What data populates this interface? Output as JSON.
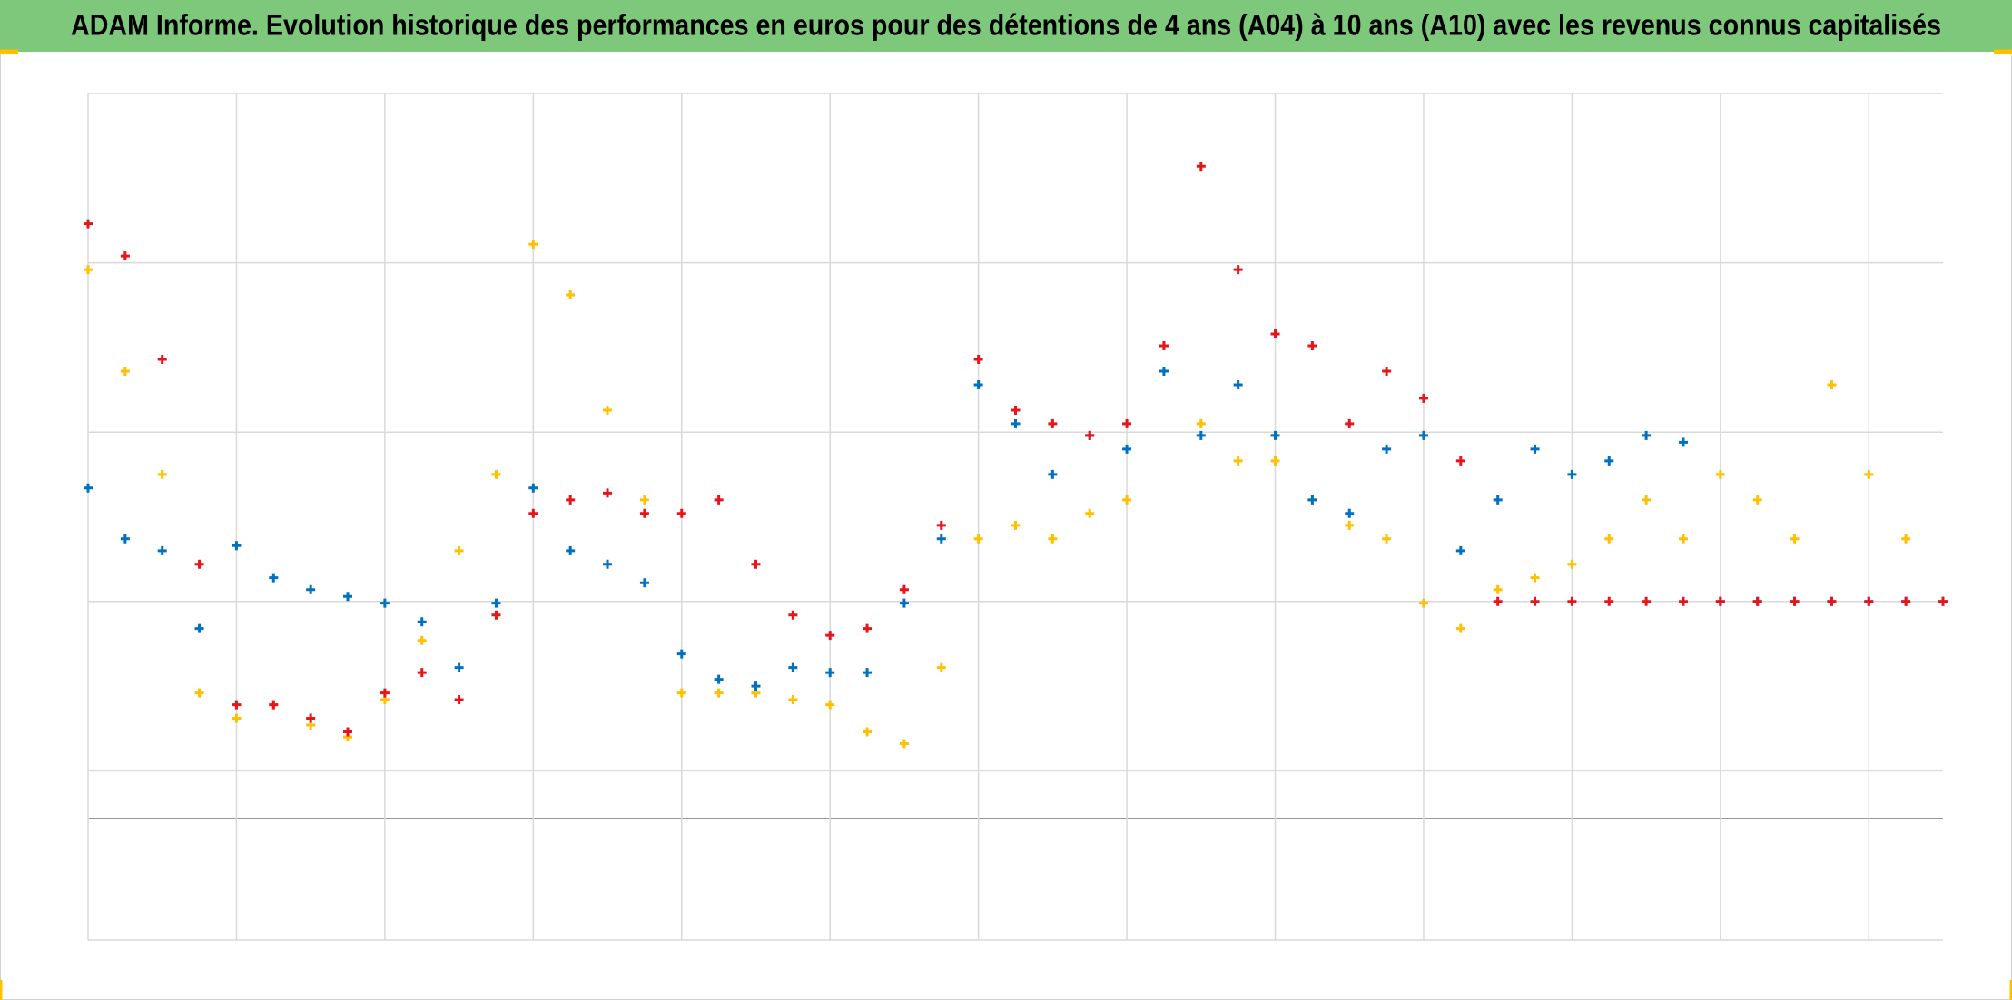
{
  "chart_data": {
    "type": "scatter",
    "title": "ADAM Informe. Evolution historique des performances en euros pour des détentions de 4 ans (A04) à 10 ans (A10) avec les revenus connus capitalisés",
    "xlim": [
      0,
      12.5
    ],
    "xticks": [
      0,
      1,
      2,
      3,
      4,
      5,
      6,
      7,
      8,
      9,
      10,
      11,
      12
    ],
    "ylim": [
      -20,
      30
    ],
    "yticks": [
      -20,
      -10,
      0,
      10,
      20,
      30
    ],
    "grid": true,
    "series": [
      {
        "color": "#ffc000",
        "x": [
          0,
          0.25,
          0.5,
          0.75,
          1,
          1.25,
          1.5,
          1.75,
          2,
          2.25,
          2.5,
          2.75,
          3,
          3.25,
          3.5,
          3.75,
          4,
          4.25,
          4.5,
          4.75,
          5,
          5.25,
          5.5,
          5.75,
          6,
          6.25,
          6.5,
          6.75,
          7,
          7.25,
          7.5,
          7.75,
          8,
          8.25,
          8.5,
          8.75,
          9,
          9.25,
          9.5,
          9.75,
          10,
          10.25,
          10.5,
          10.75,
          11,
          11.25,
          11.5,
          11.75,
          12,
          12.25
        ],
        "values": [
          19.6,
          13.6,
          7.5,
          -5.4,
          -6.9,
          -6.1,
          -7.3,
          -8.0,
          -5.8,
          -2.3,
          3.0,
          7.5,
          21.1,
          18.1,
          11.3,
          6.0,
          -5.4,
          -5.4,
          -5.4,
          -5.8,
          -6.1,
          -7.7,
          -8.4,
          -3.9,
          3.7,
          4.5,
          3.7,
          5.2,
          6.0,
          15.1,
          10.5,
          8.3,
          8.3,
          6.0,
          4.5,
          3.7,
          -0.1,
          -1.6,
          0.7,
          1.4,
          2.2,
          3.7,
          6.0,
          3.7,
          7.5,
          6.0,
          3.7,
          12.8,
          7.5,
          3.7
        ]
      },
      {
        "color": "#0070c0",
        "x": [
          0,
          0.25,
          0.5,
          0.75,
          1,
          1.25,
          1.5,
          1.75,
          2,
          2.25,
          2.5,
          2.75,
          3,
          3.25,
          3.5,
          3.75,
          4,
          4.25,
          4.5,
          4.75,
          5,
          5.25,
          5.5,
          5.75,
          6,
          6.25,
          6.5,
          6.75,
          7,
          7.25,
          7.5,
          7.75,
          8,
          8.25,
          8.5,
          8.75,
          9,
          9.25,
          9.5,
          9.75,
          10,
          10.25,
          10.5,
          10.75,
          11,
          11.25,
          11.5,
          11.75,
          12,
          12.25,
          12.5
        ],
        "values": [
          6.7,
          3.7,
          3.0,
          -1.6,
          3.3,
          1.4,
          0.7,
          0.3,
          -0.1,
          -1.2,
          -3.9,
          -0.1,
          6.7,
          3.0,
          2.2,
          1.1,
          -3.1,
          -4.6,
          -5.0,
          -3.9,
          -4.2,
          -4.2,
          -0.1,
          3.7,
          12.8,
          10.5,
          7.5,
          9.8,
          9.0,
          13.6,
          9.8,
          12.8,
          9.8,
          6.0,
          5.2,
          9.0,
          9.8,
          3.0,
          6.0,
          9.0,
          7.5,
          8.3,
          9.8,
          9.4,
          0,
          0,
          0,
          0,
          0,
          0,
          0
        ]
      },
      {
        "color": "#e8141b",
        "x": [
          0,
          0.25,
          0.5,
          0.75,
          1,
          1.25,
          1.5,
          1.75,
          2,
          2.25,
          2.5,
          2.75,
          3,
          3.25,
          3.5,
          3.75,
          4,
          4.25,
          4.5,
          4.75,
          5,
          5.25,
          5.5,
          5.75,
          6,
          6.25,
          6.5,
          6.75,
          7,
          7.25,
          7.5,
          7.75,
          8,
          8.25,
          8.5,
          8.75,
          9,
          9.25,
          9.5,
          9.75,
          10,
          10.25,
          10.5,
          10.75,
          11,
          11.25,
          11.5,
          11.75,
          12,
          12.25,
          12.5
        ],
        "values": [
          22.3,
          20.4,
          14.3,
          2.2,
          -6.1,
          -6.1,
          -6.9,
          -7.7,
          -5.4,
          -4.2,
          -5.8,
          -0.8,
          5.2,
          6.0,
          6.4,
          5.2,
          5.2,
          6.0,
          2.2,
          -0.8,
          -2.0,
          -1.6,
          0.7,
          4.5,
          14.3,
          11.3,
          10.5,
          9.8,
          10.5,
          15.1,
          25.7,
          19.6,
          15.8,
          15.1,
          10.5,
          13.6,
          12.0,
          8.3,
          0,
          0,
          0,
          0,
          0,
          0,
          0,
          0,
          0,
          0,
          0,
          0,
          0
        ]
      }
    ]
  }
}
